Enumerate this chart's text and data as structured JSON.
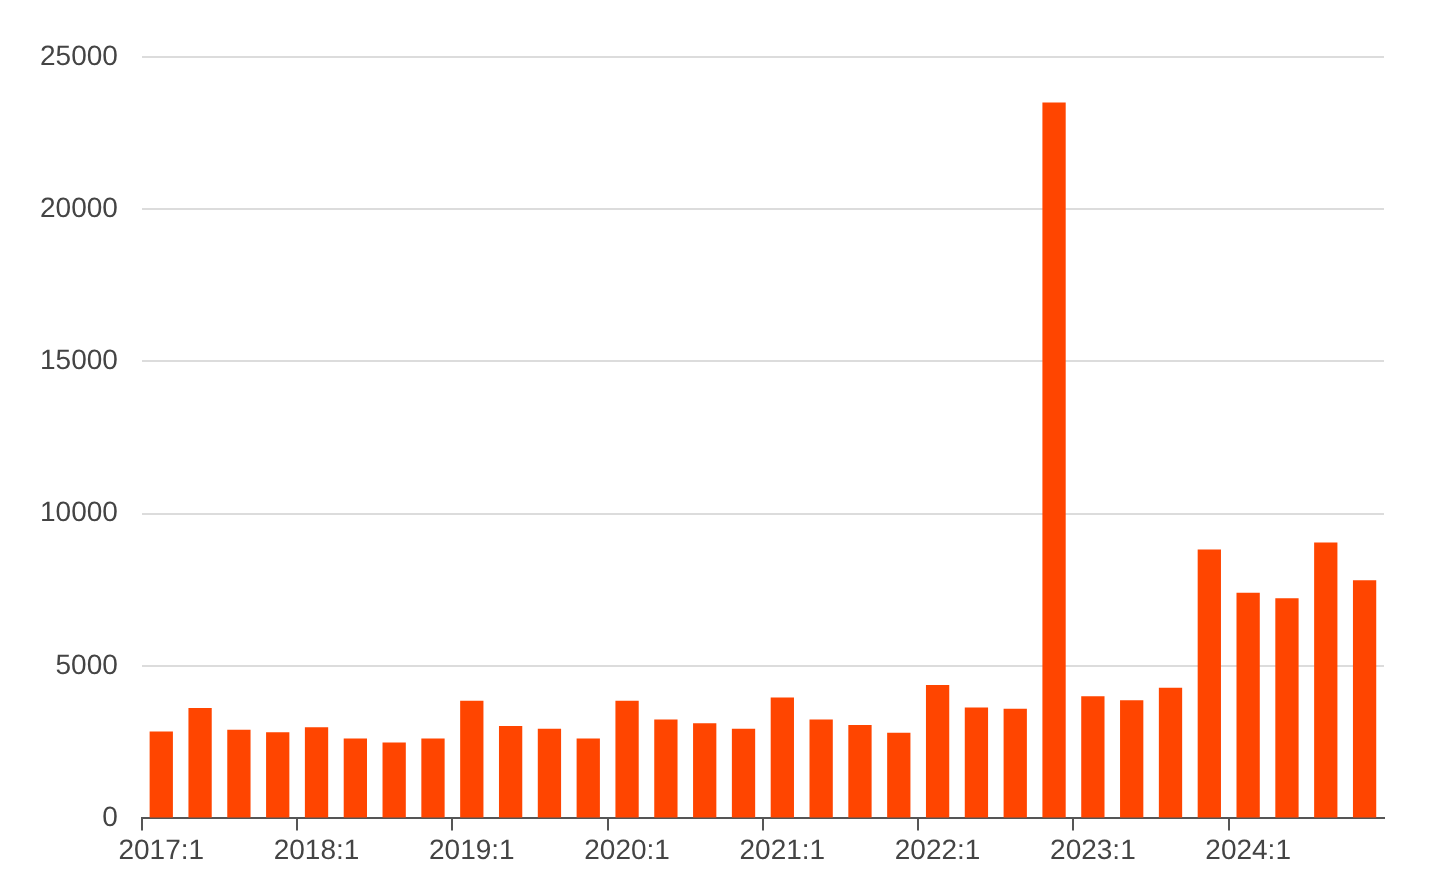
{
  "chart_data": {
    "type": "bar",
    "categories": [
      "2017:1",
      null,
      null,
      null,
      "2018:1",
      null,
      null,
      null,
      "2019:1",
      null,
      null,
      null,
      "2020:1",
      null,
      null,
      null,
      "2021:1",
      null,
      null,
      null,
      "2022:1",
      null,
      null,
      null,
      "2023:1",
      null,
      null,
      null,
      "2024:1",
      null,
      null,
      null
    ],
    "values": [
      2850,
      3620,
      2910,
      2830,
      2990,
      2620,
      2490,
      2620,
      3860,
      3030,
      2940,
      2620,
      3860,
      3250,
      3120,
      2940,
      3970,
      3250,
      3070,
      2810,
      4380,
      3640,
      3600,
      23500,
      4010,
      3880,
      4290,
      8830,
      7410,
      7230,
      9060,
      7820
    ],
    "color": "#ff4500",
    "ylim": [
      0,
      25000
    ],
    "yticks": [
      0,
      5000,
      10000,
      15000,
      20000,
      25000
    ],
    "grid": "y",
    "legend": false
  }
}
